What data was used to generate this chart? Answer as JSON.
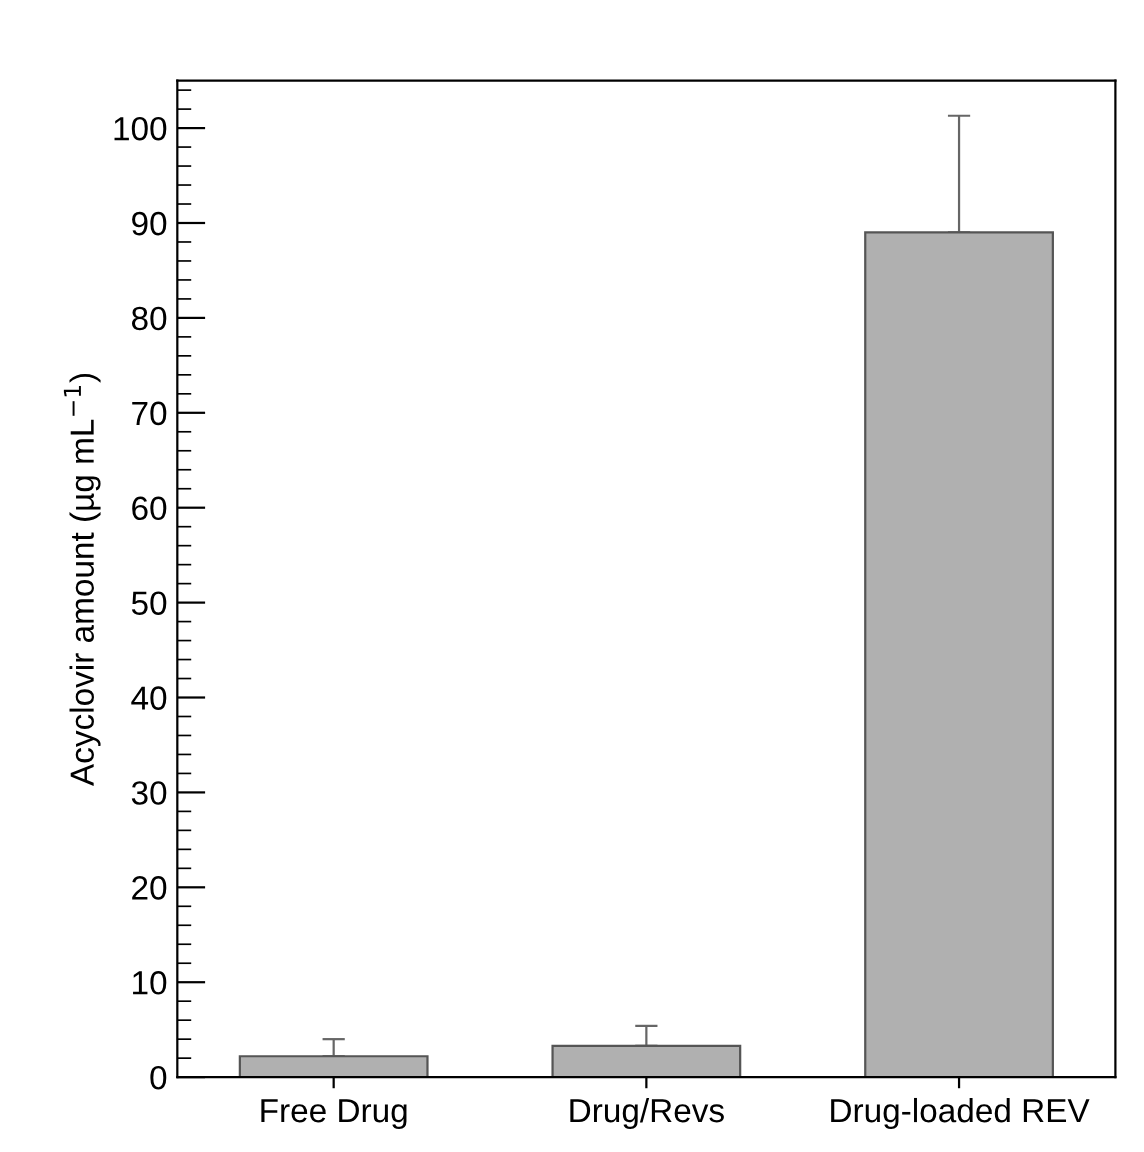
{
  "chart_data": {
    "type": "bar",
    "ylabel": "Acyclovir amount (µg mL$^{−1}$)",
    "categories": [
      "Free Drug",
      "Drug/Revs",
      "Drug-loaded REV"
    ],
    "values": [
      2.2,
      3.3,
      89
    ],
    "errors": [
      [
        2.2,
        4.0
      ],
      [
        3.3,
        5.4
      ],
      [
        89,
        101.3
      ]
    ],
    "color": "#b0b0b0",
    "ylim": [
      0,
      105
    ],
    "yticks": [
      0,
      10,
      20,
      30,
      40,
      50,
      60,
      70,
      80,
      90,
      100
    ],
    "grid": false
  }
}
